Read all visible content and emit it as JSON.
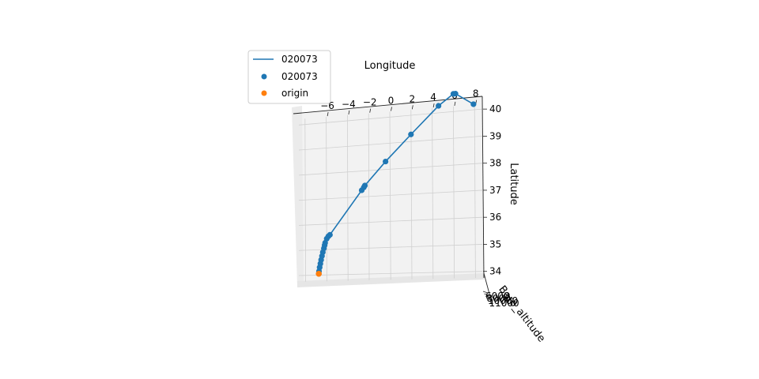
{
  "chart_data": {
    "type": "scatter",
    "projection": "3d",
    "xlabel": "Longitude",
    "ylabel": "Latitude",
    "zlabel": "Baro_altitude",
    "x_ticks": [
      "−6",
      "−4",
      "−2",
      "0",
      "2",
      "4",
      "6",
      "8"
    ],
    "y_ticks": [
      "34",
      "35",
      "36",
      "37",
      "38",
      "39",
      "40"
    ],
    "z_ticks": [
      "6000",
      "8000",
      "10000",
      "11000"
    ],
    "grid": true,
    "legend_position": "upper-left",
    "legend": [
      {
        "label": "020073",
        "kind": "line",
        "color": "#1f77b4"
      },
      {
        "label": "020073",
        "kind": "marker",
        "color": "#1f77b4"
      },
      {
        "label": "origin",
        "kind": "marker",
        "color": "#ff7f0e"
      }
    ],
    "series": [
      {
        "name": "020073",
        "color": "#1f77b4",
        "points": [
          {
            "lon": -6.7,
            "lat": 34.0
          },
          {
            "lon": -6.68,
            "lat": 34.1
          },
          {
            "lon": -6.62,
            "lat": 34.25
          },
          {
            "lon": -6.55,
            "lat": 34.4
          },
          {
            "lon": -6.48,
            "lat": 34.55
          },
          {
            "lon": -6.4,
            "lat": 34.7
          },
          {
            "lon": -6.32,
            "lat": 34.85
          },
          {
            "lon": -6.22,
            "lat": 35.0
          },
          {
            "lon": -6.15,
            "lat": 35.12
          },
          {
            "lon": -6.1,
            "lat": 35.22
          },
          {
            "lon": -5.95,
            "lat": 35.38
          },
          {
            "lon": -5.8,
            "lat": 35.47
          },
          {
            "lon": -5.65,
            "lat": 35.53
          },
          {
            "lon": -2.65,
            "lat": 37.22
          },
          {
            "lon": -2.45,
            "lat": 37.33
          },
          {
            "lon": -2.35,
            "lat": 37.4
          },
          {
            "lon": -0.4,
            "lat": 38.28
          },
          {
            "lon": 2.0,
            "lat": 39.25
          },
          {
            "lon": 4.6,
            "lat": 40.25
          },
          {
            "lon": 6.0,
            "lat": 40.65
          },
          {
            "lon": 6.2,
            "lat": 40.65
          },
          {
            "lon": 7.9,
            "lat": 40.2
          }
        ]
      },
      {
        "name": "origin",
        "color": "#ff7f0e",
        "points": [
          {
            "lon": -6.7,
            "lat": 34.0
          }
        ]
      }
    ]
  }
}
